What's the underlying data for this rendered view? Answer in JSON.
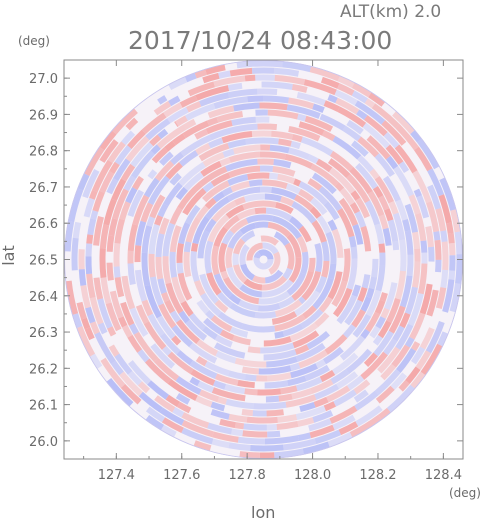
{
  "header": {
    "altitude": "ALT(km) 2.0",
    "timestamp": "2017/10/24 08:43:00"
  },
  "chart_data": {
    "type": "heatmap",
    "title": "2017/10/24 08:43:00",
    "subtitle": "ALT(km) 2.0",
    "xlabel": "lon",
    "ylabel": "lat",
    "x_unit": "(deg)",
    "y_unit": "(deg)",
    "xlim": [
      127.24,
      128.46
    ],
    "ylim": [
      25.95,
      27.05
    ],
    "x_ticks": [
      "127.4",
      "127.6",
      "127.8",
      "128.0",
      "128.2",
      "128.4"
    ],
    "y_ticks": [
      "26.0",
      "26.1",
      "26.2",
      "26.3",
      "26.4",
      "26.5",
      "26.6",
      "26.7",
      "26.8",
      "26.9",
      "27.0"
    ],
    "field": {
      "shape": "circular radar scan",
      "center_lon": 127.85,
      "center_lat": 26.5,
      "radius_lat": 0.55,
      "pattern": "concentric rings of alternating positive and negative values"
    },
    "colors": {
      "positive": "#f4a0a0",
      "negative": "#a9b2f6",
      "axis": "#777777",
      "background": "#ffffff"
    },
    "grid": false
  }
}
